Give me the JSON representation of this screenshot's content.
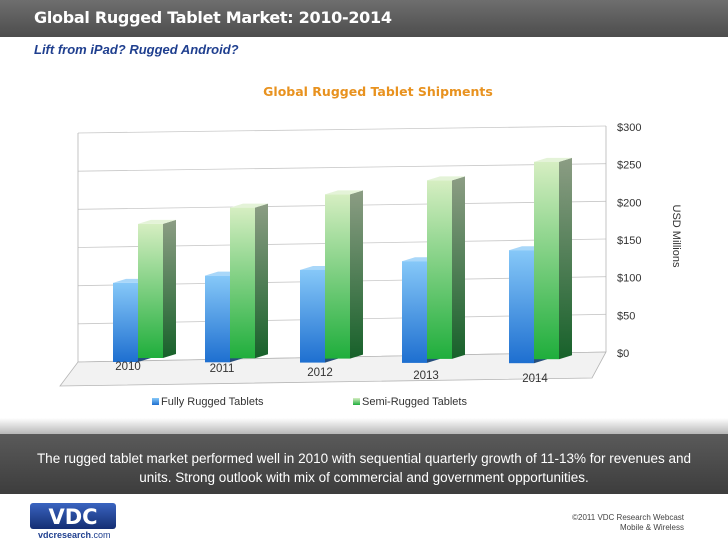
{
  "slide": {
    "title": "Global Rugged Tablet Market: 2010-2014",
    "subtitle": "Lift from iPad? Rugged Android?",
    "summary": "The rugged tablet market performed well in 2010 with sequential quarterly growth of 11-13% for revenues and units. Strong outlook with mix of commercial and government opportunities.",
    "logo_text": "VDC",
    "website_name": "vdcresearch",
    "website_suffix": ".com",
    "copyright_line1": "©2011 VDC Research Webcast",
    "copyright_line2": "Mobile & Wireless"
  },
  "colors": {
    "title_orange": "#e8921f",
    "fully_rugged": "#3f9be8",
    "semi_rugged": "#3bbb55",
    "logo_blue": "#1f3f8f"
  },
  "chart_data": {
    "type": "bar",
    "title": "Global Rugged Tablet Shipments",
    "categories": [
      "2010",
      "2011",
      "2012",
      "2013",
      "2014"
    ],
    "series": [
      {
        "name": "Fully Rugged Tablets",
        "values": [
          105,
          115,
          123,
          135,
          150
        ]
      },
      {
        "name": "Semi-Rugged Tablets",
        "values": [
          178,
          200,
          218,
          237,
          262
        ]
      }
    ],
    "ylabel": "USD Millions",
    "yticks": [
      "$0",
      "$50",
      "$100",
      "$150",
      "$200",
      "$250",
      "$300"
    ],
    "ylim": [
      0,
      300
    ],
    "ytick_step": 50,
    "grid": true,
    "legend": "bottom",
    "style": "3d"
  }
}
